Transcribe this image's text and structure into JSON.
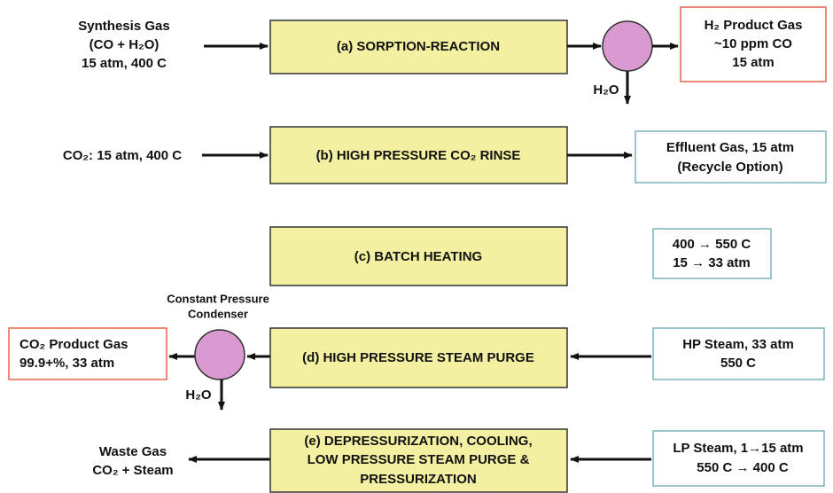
{
  "steps": [
    {
      "label": [
        "(a) SORPTION-REACTION"
      ],
      "feed": [
        "Synthesis Gas",
        "(CO + H₂O)",
        "15 atm, 400 C"
      ],
      "product": [
        "H₂ Product Gas",
        "~10 ppm CO",
        "15 atm"
      ],
      "byproduct": "H₂O"
    },
    {
      "label": [
        "(b) HIGH PRESSURE CO₂ RINSE"
      ],
      "feed": [
        "CO₂: 15 atm, 400 C"
      ],
      "product": [
        "Effluent Gas, 15 atm",
        "(Recycle Option)"
      ]
    },
    {
      "label": [
        "(c)  BATCH HEATING"
      ],
      "conditions": [
        "400 → 550 C",
        "15 → 33 atm"
      ]
    },
    {
      "label": [
        "(d) HIGH PRESSURE STEAM PURGE"
      ],
      "feed": [
        "HP Steam, 33 atm",
        "550 C"
      ],
      "condenser": [
        "Constant Pressure",
        "Condenser"
      ],
      "product": [
        "CO₂ Product Gas",
        "99.9+%, 33 atm"
      ],
      "byproduct": "H₂O"
    },
    {
      "label": [
        "(e) DEPRESSURIZATION, COOLING,",
        "LOW PRESSURE STEAM PURGE &",
        "PRESSURIZATION"
      ],
      "feed": [
        "LP Steam, 1→15 atm",
        "550 C → 400 C"
      ],
      "product": [
        "Waste Gas",
        "CO₂ + Steam"
      ]
    }
  ]
}
